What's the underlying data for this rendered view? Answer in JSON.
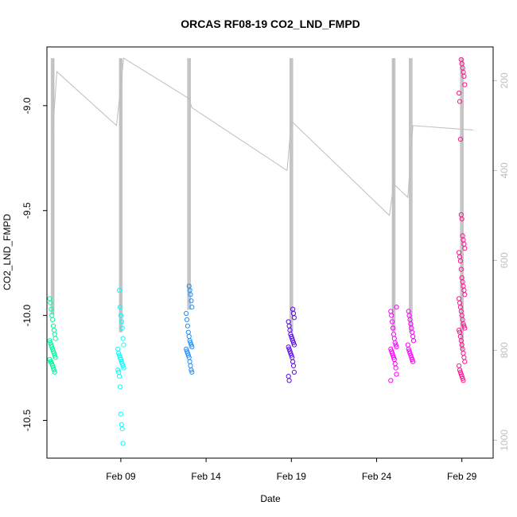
{
  "chart_data": {
    "type": "scatter",
    "title": "ORCAS RF08-19 CO2_LND_FMPD",
    "xlabel": "Date",
    "ylabel": "CO2_LND_FMPD",
    "x_ticks": [
      "Feb 09",
      "Feb 14",
      "Feb 19",
      "Feb 24",
      "Feb 29"
    ],
    "y_ticks": [
      "-9.0",
      "-9.5",
      "-10.0",
      "-10.5"
    ],
    "y2_ticks": [
      "200",
      "400",
      "600",
      "800",
      "1000"
    ],
    "xlim": [
      "2016-02-04T16:00",
      "2016-03-01T20:00"
    ],
    "ylim": [
      -10.68,
      -8.72
    ],
    "y2lim": [
      125,
      1040
    ],
    "y2_reversed": true,
    "grid": false,
    "legend": "none",
    "colors": {
      "point_palette": [
        "#00FA9A",
        "#00FFFF",
        "#1E90FF",
        "#5B0BE8",
        "#FF00FF",
        "#FF1493"
      ],
      "altitude_track": "#BEBEBE",
      "frame": "#000000",
      "right_axis": "#BEBEBE"
    },
    "series": [
      {
        "color": "#00FA9A",
        "x": "2016-02-05",
        "y_min": -10.27,
        "y_max": -9.92,
        "y_values": [
          -9.92,
          -9.94,
          -9.97,
          -10.0,
          -10.02,
          -10.05,
          -10.07,
          -10.09,
          -10.11,
          -10.12,
          -10.13,
          -10.14,
          -10.15,
          -10.16,
          -10.17,
          -10.18,
          -10.19,
          -10.2,
          -10.21,
          -10.22,
          -10.22,
          -10.23,
          -10.24,
          -10.25,
          -10.26,
          -10.27
        ]
      },
      {
        "color": "#00FFFF",
        "x": "2016-02-09",
        "y_min": -10.61,
        "y_max": -9.88,
        "y_values": [
          -9.88,
          -9.96,
          -10.0,
          -10.03,
          -10.06,
          -10.11,
          -10.14,
          -10.16,
          -10.18,
          -10.19,
          -10.2,
          -10.21,
          -10.22,
          -10.23,
          -10.24,
          -10.25,
          -10.26,
          -10.27,
          -10.29,
          -10.34,
          -10.47,
          -10.52,
          -10.54,
          -10.61
        ]
      },
      {
        "color": "#1E90FF",
        "x": "2016-02-13",
        "y_min": -10.27,
        "y_max": -9.86,
        "y_values": [
          -9.86,
          -9.88,
          -9.9,
          -9.93,
          -9.96,
          -9.99,
          -10.02,
          -10.05,
          -10.08,
          -10.1,
          -10.12,
          -10.13,
          -10.14,
          -10.15,
          -10.16,
          -10.17,
          -10.18,
          -10.19,
          -10.2,
          -10.22,
          -10.24,
          -10.26,
          -10.27
        ]
      },
      {
        "color": "#5B0BE8",
        "x": "2016-02-19",
        "y_min": -10.31,
        "y_max": -9.97,
        "y_values": [
          -9.97,
          -9.99,
          -10.01,
          -10.03,
          -10.05,
          -10.07,
          -10.09,
          -10.1,
          -10.11,
          -10.12,
          -10.13,
          -10.14,
          -10.15,
          -10.16,
          -10.17,
          -10.18,
          -10.19,
          -10.2,
          -10.22,
          -10.24,
          -10.27,
          -10.29,
          -10.31
        ]
      },
      {
        "color": "#FF00FF",
        "x": "2016-02-25",
        "y_min": -10.31,
        "y_max": -9.96,
        "y_values": [
          -9.96,
          -9.98,
          -10.0,
          -10.03,
          -10.06,
          -10.09,
          -10.11,
          -10.13,
          -10.14,
          -10.15,
          -10.16,
          -10.17,
          -10.18,
          -10.19,
          -10.2,
          -10.21,
          -10.23,
          -10.25,
          -10.28,
          -10.31
        ]
      },
      {
        "color": "#FF00FF",
        "x": "2016-02-26",
        "y_min": -10.22,
        "y_max": -9.98,
        "y_values": [
          -9.98,
          -10.0,
          -10.02,
          -10.04,
          -10.06,
          -10.08,
          -10.1,
          -10.12,
          -10.14,
          -10.16,
          -10.17,
          -10.18,
          -10.19,
          -10.2,
          -10.21,
          -10.22
        ]
      },
      {
        "color": "#FF1493",
        "x": "2016-02-29",
        "y_min": -10.31,
        "y_max": -8.78,
        "y_values": [
          -8.78,
          -8.8,
          -8.82,
          -8.84,
          -8.86,
          -8.9,
          -8.94,
          -8.98,
          -9.16,
          -9.52,
          -9.54,
          -9.62,
          -9.64,
          -9.66,
          -9.68,
          -9.7,
          -9.72,
          -9.74,
          -9.78,
          -9.82,
          -9.84,
          -9.86,
          -9.88,
          -9.9,
          -9.92,
          -9.94,
          -9.96,
          -9.98,
          -10.0,
          -10.02,
          -10.04,
          -10.05,
          -10.06,
          -10.07,
          -10.08,
          -10.1,
          -10.12,
          -10.14,
          -10.16,
          -10.18,
          -10.2,
          -10.22,
          -10.24,
          -10.26,
          -10.27,
          -10.28,
          -10.29,
          -10.3,
          -10.31
        ]
      }
    ],
    "altitude_track": {
      "axis": "right",
      "points": [
        {
          "x": "2016-02-05T00:00",
          "alt": 320
        },
        {
          "x": "2016-02-05T06:00",
          "alt": 180
        },
        {
          "x": "2016-02-08T18:00",
          "alt": 300
        },
        {
          "x": "2016-02-09T04:00",
          "alt": 150
        },
        {
          "x": "2016-02-13T00:00",
          "alt": 240
        },
        {
          "x": "2016-02-13T04:00",
          "alt": 260
        },
        {
          "x": "2016-02-18T18:00",
          "alt": 400
        },
        {
          "x": "2016-02-19T00:00",
          "alt": 290
        },
        {
          "x": "2016-02-24T18:00",
          "alt": 500
        },
        {
          "x": "2016-02-25T00:00",
          "alt": 430
        },
        {
          "x": "2016-02-25T20:00",
          "alt": 460
        },
        {
          "x": "2016-02-26T03:00",
          "alt": 300
        },
        {
          "x": "2016-02-29T16:00",
          "alt": 310
        }
      ],
      "profiles": [
        {
          "x": "2016-02-05",
          "alt_top": 150,
          "alt_bottom": 720
        },
        {
          "x": "2016-02-09",
          "alt_top": 150,
          "alt_bottom": 760
        },
        {
          "x": "2016-02-13",
          "alt_top": 150,
          "alt_bottom": 710
        },
        {
          "x": "2016-02-19",
          "alt_top": 150,
          "alt_bottom": 760
        },
        {
          "x": "2016-02-25",
          "alt_top": 150,
          "alt_bottom": 760
        },
        {
          "x": "2016-02-26",
          "alt_top": 150,
          "alt_bottom": 760
        },
        {
          "x": "2016-02-29",
          "alt_top": 150,
          "alt_bottom": 800
        }
      ]
    }
  }
}
